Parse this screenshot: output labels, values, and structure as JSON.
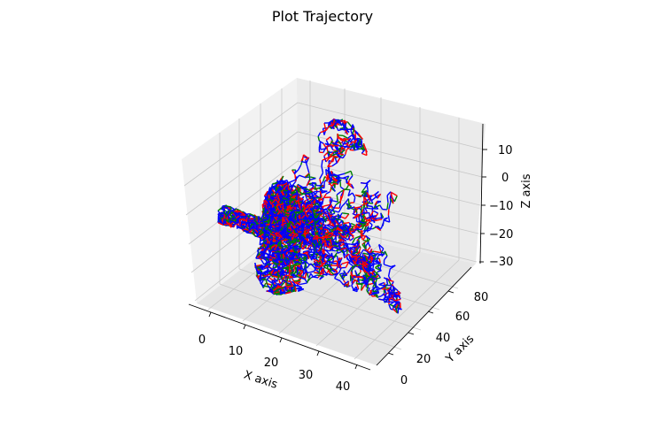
{
  "chart_data": {
    "type": "line3d",
    "title": "Plot Trajectory",
    "xlabel": "X axis",
    "ylabel": "Y axis",
    "zlabel": "Z axis",
    "x_ticks": [
      "0",
      "10",
      "20",
      "30",
      "40"
    ],
    "y_ticks": [
      "0",
      "20",
      "40",
      "60",
      "80"
    ],
    "z_ticks": [
      "10",
      "0",
      "−10",
      "−20",
      "−30"
    ],
    "xlim": [
      -5,
      45
    ],
    "ylim": [
      -10,
      90
    ],
    "zlim": [
      -32,
      17
    ],
    "grid": true,
    "series_colors": [
      "#0000ff",
      "#ff0000",
      "#008000"
    ],
    "description_of_data": "random-walk trajectory, approx 20000 steps"
  }
}
